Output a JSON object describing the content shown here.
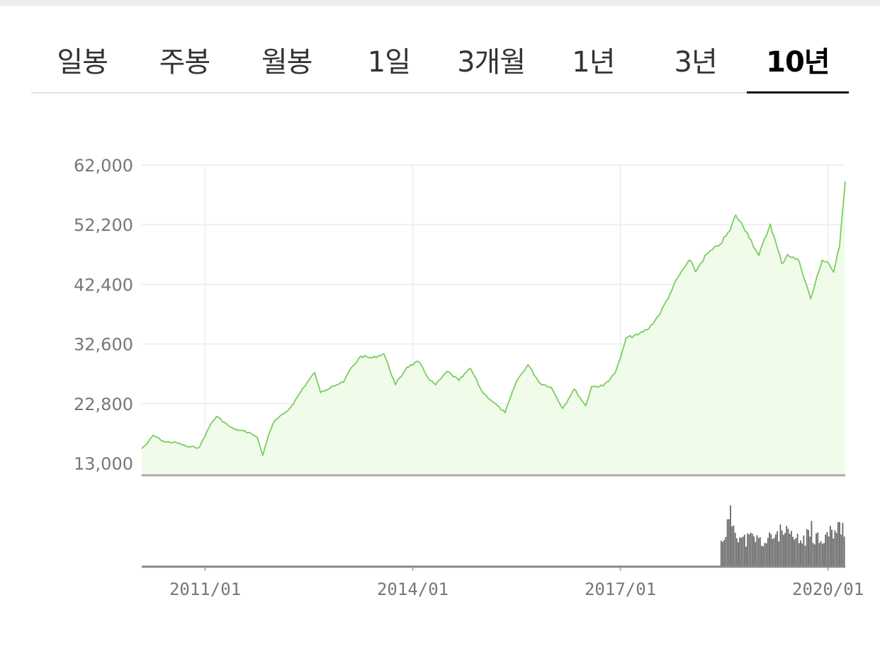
{
  "tabs": [
    {
      "label": "일봉",
      "active": false
    },
    {
      "label": "주봉",
      "active": false
    },
    {
      "label": "월봉",
      "active": false
    },
    {
      "label": "1일",
      "active": false
    },
    {
      "label": "3개월",
      "active": false
    },
    {
      "label": "1년",
      "active": false
    },
    {
      "label": "3년",
      "active": false
    },
    {
      "label": "10년",
      "active": true
    }
  ],
  "chart_data": {
    "type": "area",
    "title": "",
    "xlabel": "",
    "ylabel": "",
    "grid": true,
    "x_range": [
      "2010-02",
      "2020-04"
    ],
    "ylim": [
      13000,
      62000
    ],
    "y_ticks": [
      62000,
      52200,
      42400,
      32600,
      22800,
      13000
    ],
    "y_tick_labels": [
      "62,000",
      "52,200",
      "42,400",
      "32,600",
      "22,800",
      "13,000"
    ],
    "x_ticks": [
      "2011-01",
      "2014-01",
      "2017-01",
      "2020-01"
    ],
    "x_tick_labels": [
      "2011/01",
      "2014/01",
      "2017/01",
      "2020/01"
    ],
    "line_color": "#7ccc63",
    "fill_color": "#f0fce9",
    "volume_color": "#666666",
    "series": [
      {
        "x": [
          "2010-02",
          "2010-03",
          "2010-04",
          "2010-06",
          "2010-08",
          "2010-10",
          "2010-12",
          "2011-02",
          "2011-03",
          "2011-05",
          "2011-06",
          "2011-08",
          "2011-09",
          "2011-10",
          "2011-11",
          "2011-12",
          "2012-01",
          "2012-03",
          "2012-04",
          "2012-06",
          "2012-08",
          "2012-09",
          "2012-11",
          "2013-01",
          "2013-02",
          "2013-04",
          "2013-06",
          "2013-08",
          "2013-10",
          "2013-12",
          "2014-02",
          "2014-04",
          "2014-05",
          "2014-07",
          "2014-09",
          "2014-11",
          "2015-01",
          "2015-03",
          "2015-05",
          "2015-07",
          "2015-09",
          "2015-11",
          "2016-01",
          "2016-03",
          "2016-05",
          "2016-07",
          "2016-08",
          "2016-10",
          "2016-12",
          "2017-01",
          "2017-02",
          "2017-04",
          "2017-06",
          "2017-08",
          "2017-10",
          "2017-11",
          "2018-01",
          "2018-02",
          "2018-04",
          "2018-06",
          "2018-08",
          "2018-09",
          "2018-11",
          "2019-01",
          "2019-03",
          "2019-05",
          "2019-06",
          "2019-08",
          "2019-10",
          "2019-12",
          "2020-01",
          "2020-02",
          "2020-03",
          "2020-04"
        ],
        "values": [
          15400,
          16300,
          17600,
          16500,
          16400,
          15700,
          15600,
          19500,
          20700,
          19200,
          18600,
          18200,
          17900,
          17300,
          14300,
          17700,
          19900,
          21400,
          22400,
          25400,
          27900,
          24600,
          25700,
          26300,
          28200,
          30600,
          30300,
          31000,
          25900,
          28800,
          29700,
          26600,
          25900,
          28100,
          26600,
          28600,
          24800,
          23000,
          21300,
          26500,
          29200,
          26200,
          25500,
          22000,
          25200,
          22400,
          25600,
          25700,
          27700,
          30200,
          33600,
          34100,
          35200,
          37800,
          41600,
          43600,
          46400,
          44500,
          47400,
          48700,
          51200,
          53800,
          50900,
          47100,
          52300,
          45800,
          47300,
          46200,
          40000,
          46400,
          46000,
          44400,
          48600,
          59300
        ]
      }
    ],
    "volume": {
      "x": [
        "2018-06",
        "2018-08",
        "2018-10",
        "2018-12",
        "2019-02",
        "2019-04",
        "2019-06",
        "2019-08",
        "2019-10",
        "2019-12",
        "2020-02",
        "2020-04"
      ],
      "relative": [
        0.35,
        0.93,
        0.5,
        0.55,
        0.45,
        0.65,
        0.6,
        0.48,
        0.62,
        0.55,
        0.68,
        0.78
      ]
    }
  }
}
